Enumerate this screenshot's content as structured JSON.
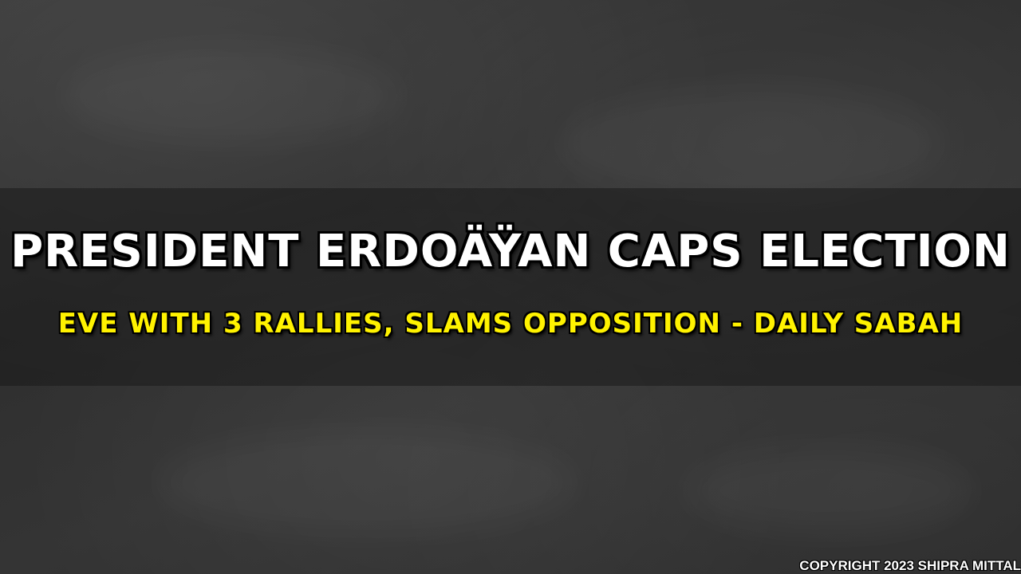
{
  "headline": {
    "line1": "PRESIDENT ERDOÄŸAN CAPS ELECTION",
    "line2": "EVE WITH 3 RALLIES, SLAMS OPPOSITION - DAILY SABAH"
  },
  "copyright": "COPYRIGHT 2023 SHIPRA MITTAL",
  "colors": {
    "background": "#2f2f2f",
    "headline_primary": "#ffffff",
    "headline_secondary": "#fff200",
    "outline": "#000000"
  }
}
